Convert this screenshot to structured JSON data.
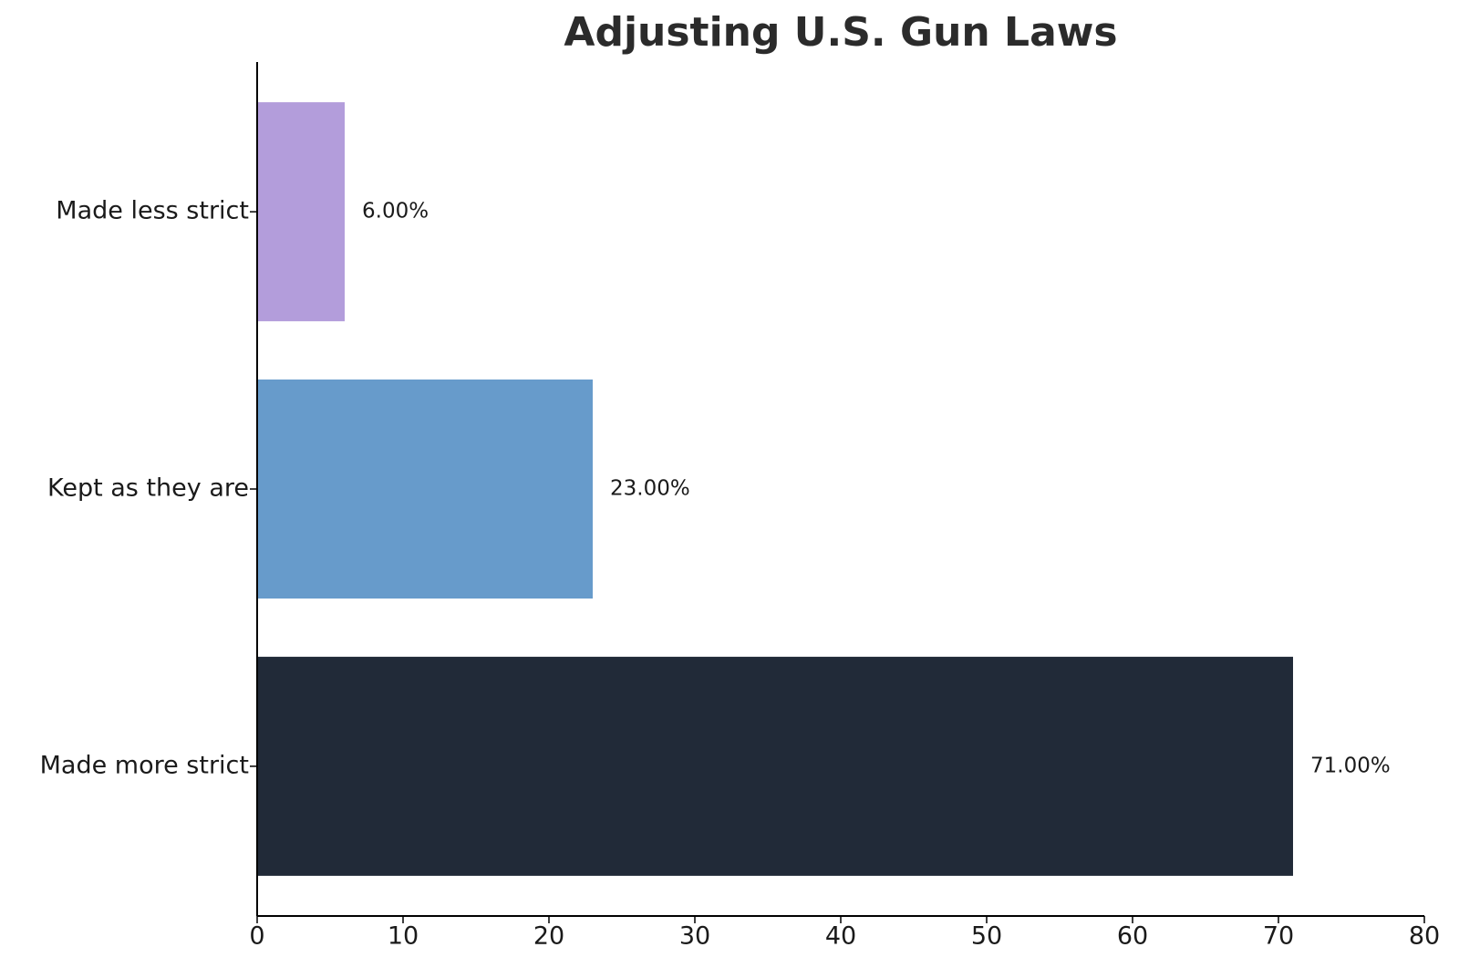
{
  "chart_data": {
    "type": "barh",
    "title": "Adjusting U.S. Gun Laws",
    "categories": [
      "Made more strict",
      "Kept as they are",
      "Made less strict"
    ],
    "values": [
      71,
      23,
      6
    ],
    "value_labels": [
      "71.00%",
      "23.00%",
      "6.00%"
    ],
    "colors": [
      "#212a38",
      "#679bcb",
      "#b39ddb"
    ],
    "xlim": [
      0,
      80
    ],
    "xticks": [
      0,
      10,
      20,
      30,
      40,
      50,
      60,
      70,
      80
    ]
  }
}
